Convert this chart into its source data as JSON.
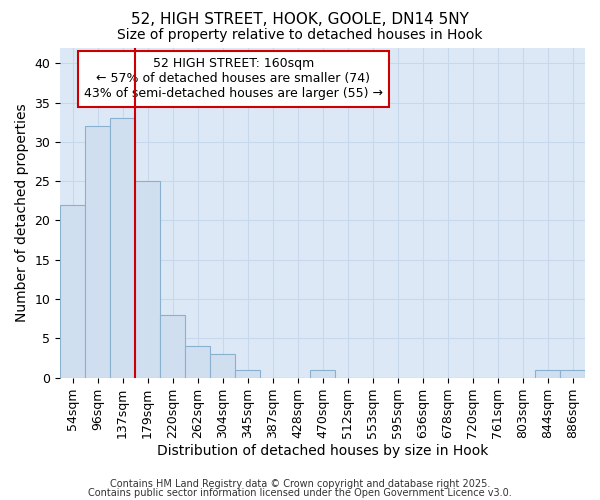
{
  "title1": "52, HIGH STREET, HOOK, GOOLE, DN14 5NY",
  "title2": "Size of property relative to detached houses in Hook",
  "xlabel": "Distribution of detached houses by size in Hook",
  "ylabel": "Number of detached properties",
  "categories": [
    "54sqm",
    "96sqm",
    "137sqm",
    "179sqm",
    "220sqm",
    "262sqm",
    "304sqm",
    "345sqm",
    "387sqm",
    "428sqm",
    "470sqm",
    "512sqm",
    "553sqm",
    "595sqm",
    "636sqm",
    "678sqm",
    "720sqm",
    "761sqm",
    "803sqm",
    "844sqm",
    "886sqm"
  ],
  "values": [
    22,
    32,
    33,
    25,
    8,
    4,
    3,
    1,
    0,
    0,
    1,
    0,
    0,
    0,
    0,
    0,
    0,
    0,
    0,
    1,
    1
  ],
  "bar_color": "#d0dff0",
  "bar_edge_color": "#8ab0d0",
  "red_line_x": 2.5,
  "annotation_line1": "52 HIGH STREET: 160sqm",
  "annotation_line2": "← 57% of detached houses are smaller (74)",
  "annotation_line3": "43% of semi-detached houses are larger (55) →",
  "annotation_box_color": "#ffffff",
  "annotation_box_edge": "#cc0000",
  "ylim_max": 42,
  "plot_bg_color": "#dce8f5",
  "fig_bg_color": "#ffffff",
  "grid_color": "#c8d8ec",
  "footer1": "Contains HM Land Registry data © Crown copyright and database right 2025.",
  "footer2": "Contains public sector information licensed under the Open Government Licence v3.0.",
  "title_fontsize": 11,
  "subtitle_fontsize": 10,
  "axis_label_fontsize": 10,
  "tick_fontsize": 9,
  "annotation_fontsize": 9,
  "footer_fontsize": 7
}
